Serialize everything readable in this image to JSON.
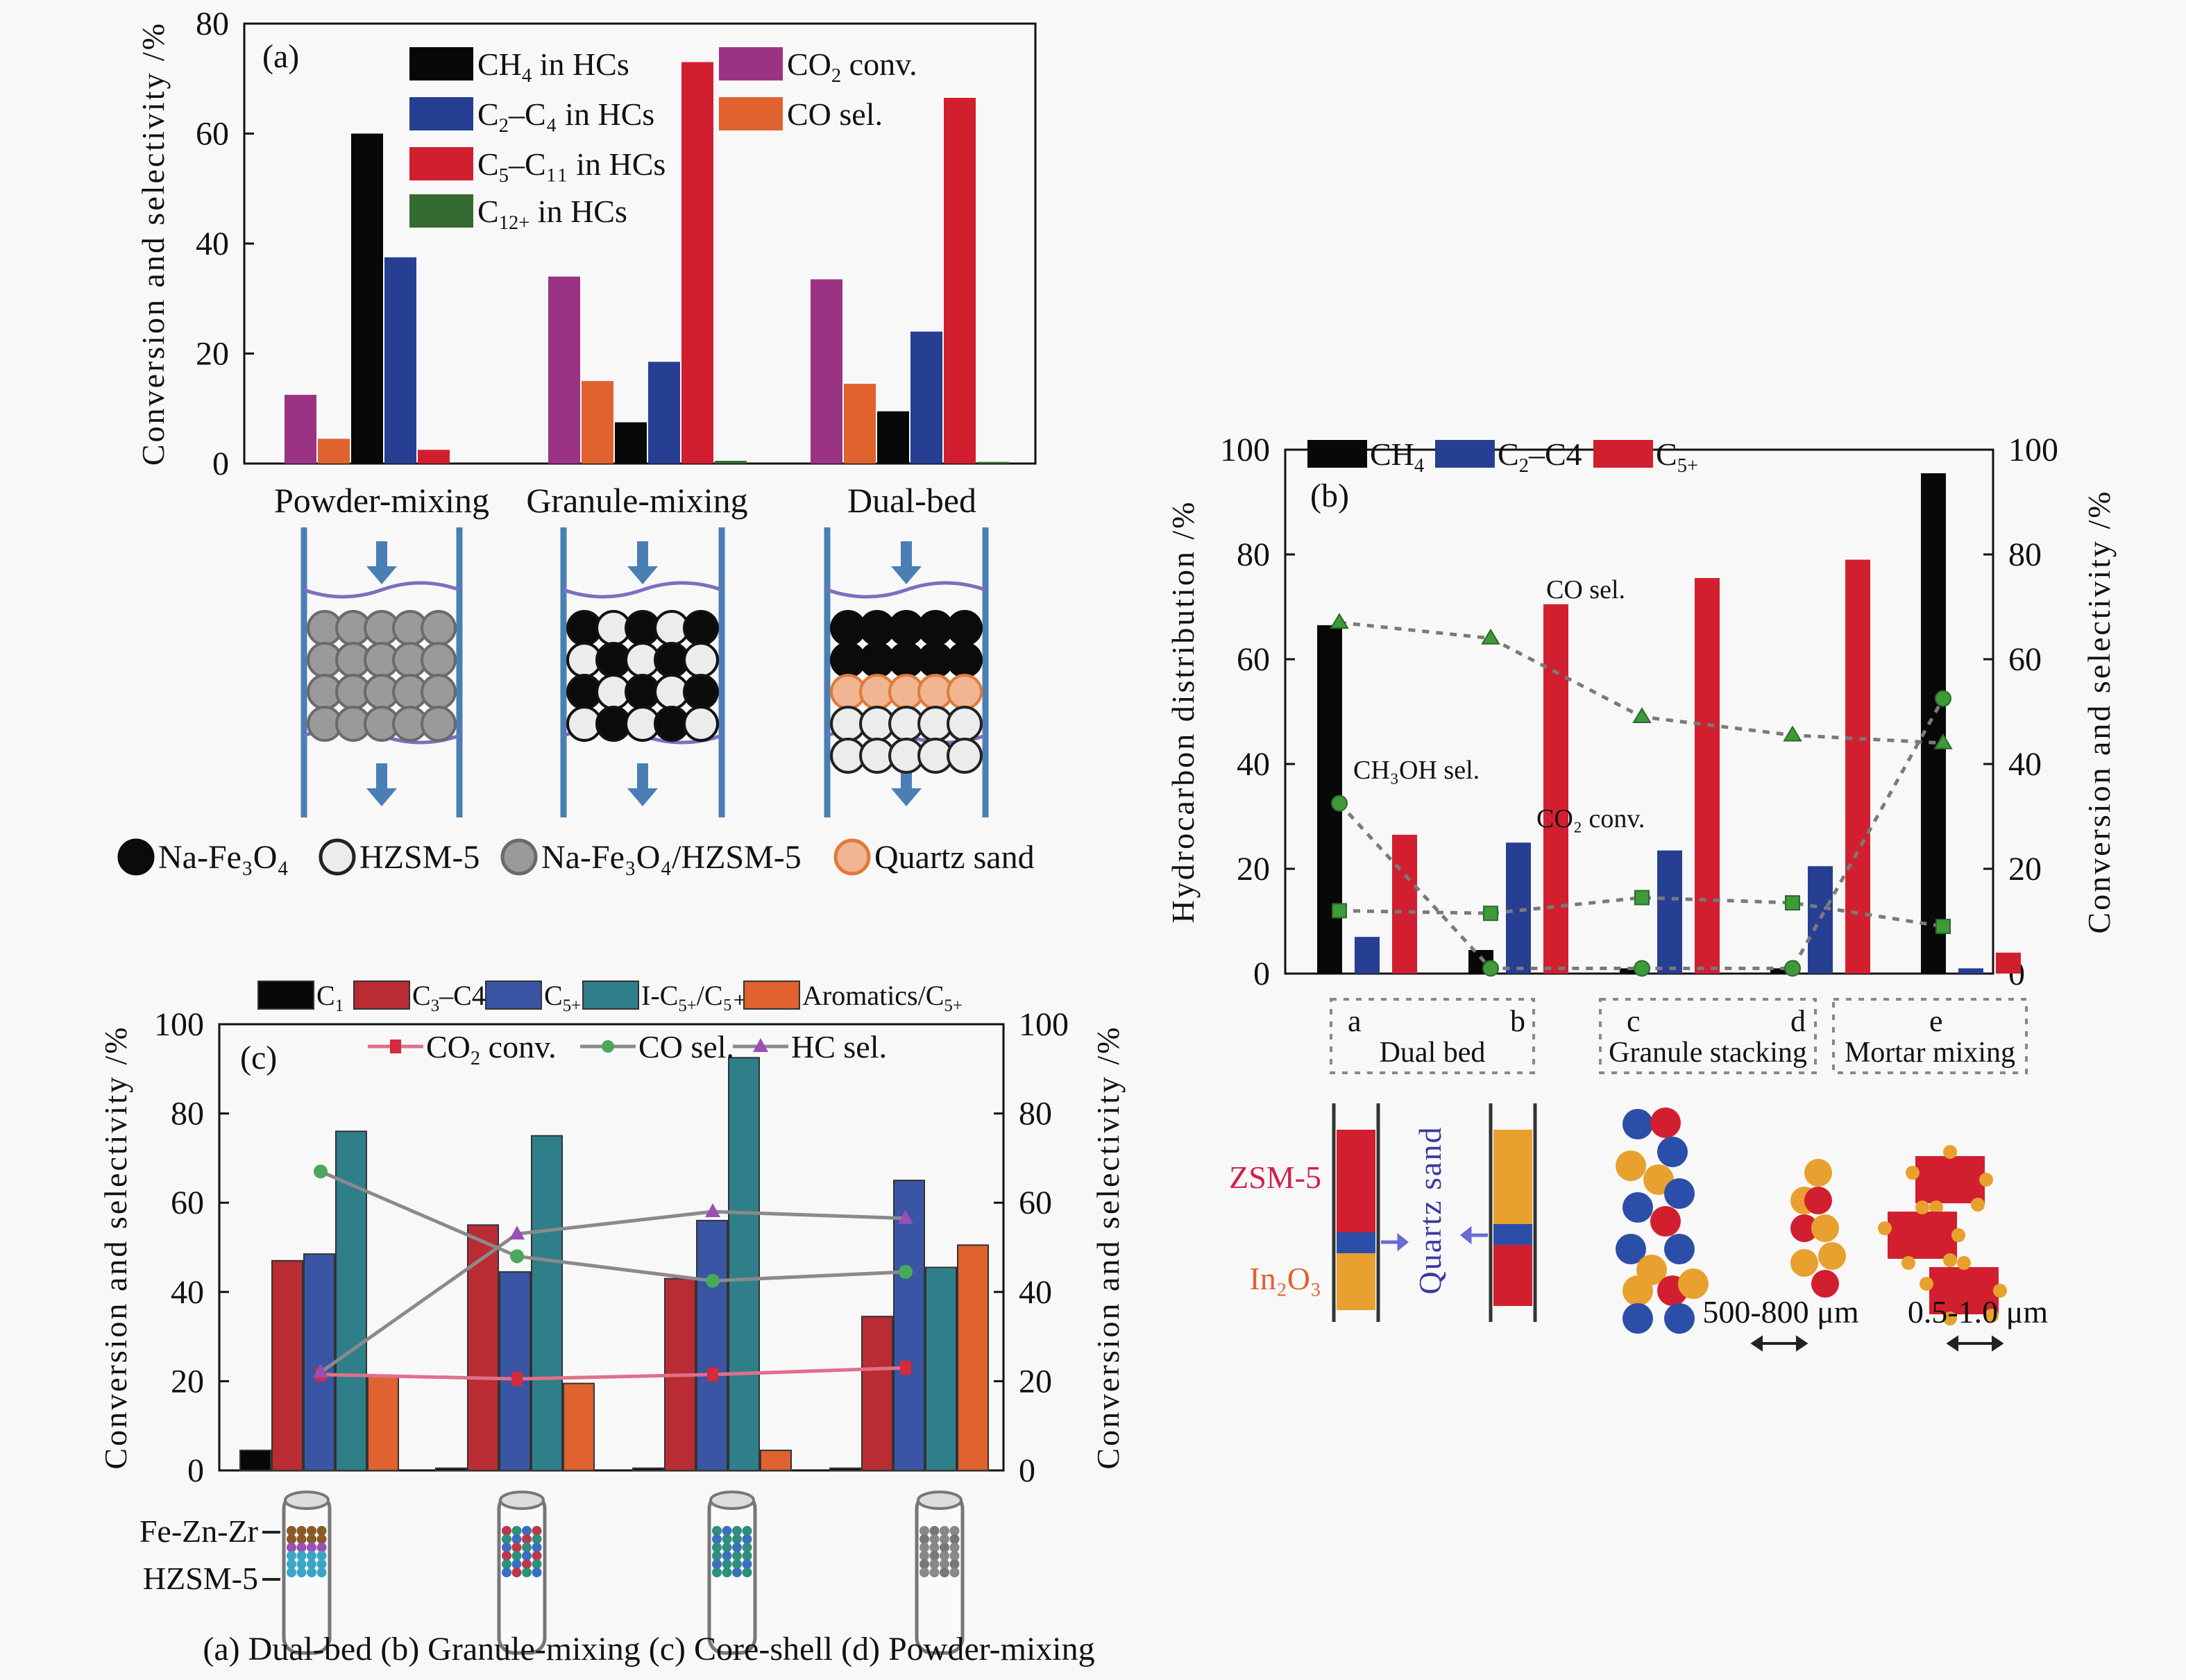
{
  "chart_data": [
    {
      "id": "a",
      "type": "bar",
      "panel_label": "(a)",
      "ylabel": "Conversion and selectivity /%",
      "ylim": [
        0,
        80
      ],
      "yticks": [
        "0",
        "20",
        "40",
        "60",
        "80"
      ],
      "categories": [
        "Powder-mixing",
        "Granule-mixing",
        "Dual-bed"
      ],
      "legend_position": "top-center",
      "series": [
        {
          "name": "CO2 conv.",
          "label_main": "CO",
          "label_sub": "2",
          "label_tail": " conv.",
          "color": "#9b3384",
          "values": [
            12.5,
            34,
            33.5
          ]
        },
        {
          "name": "CO sel.",
          "label_main": "CO sel.",
          "label_sub": "",
          "label_tail": "",
          "color": "#e0622e",
          "values": [
            4.5,
            15,
            14.5
          ]
        },
        {
          "name": "CH4 in HCs",
          "label_main": "CH",
          "label_sub": "4",
          "label_tail": " in HCs",
          "color": "#080808",
          "values": [
            60,
            7.5,
            9.5
          ]
        },
        {
          "name": "C2-C4 in HCs",
          "label_main": "C",
          "label_sub": "2",
          "label_tail": "–C₄ in HCs",
          "color": "#263f93",
          "values": [
            37.5,
            18.5,
            24
          ]
        },
        {
          "name": "C5-C11 in HCs",
          "label_main": "C",
          "label_sub": "5",
          "label_tail": "–C₁₁ in HCs",
          "color": "#d21f2f",
          "values": [
            2.5,
            73,
            66.5
          ]
        },
        {
          "name": "C12+ in HCs",
          "label_main": "C",
          "label_sub": "12+",
          "label_tail": " in HCs",
          "color": "#356b33",
          "values": [
            0,
            0.5,
            0.3
          ]
        }
      ],
      "legend_order": [
        2,
        0,
        3,
        1,
        4,
        5
      ]
    },
    {
      "id": "b",
      "type": "bar",
      "panel_label": "(b)",
      "ylabel": "Hydrocarbon distribution /%",
      "y2label": "Conversion and selectivity /%",
      "ylim": [
        0,
        100
      ],
      "y2lim": [
        0,
        100
      ],
      "yticks": [
        "0",
        "20",
        "40",
        "60",
        "80",
        "100"
      ],
      "categories": [
        "a",
        "b",
        "c",
        "d",
        "e"
      ],
      "legend_position": "top-left",
      "series": [
        {
          "name": "CH4",
          "label_main": "CH",
          "label_sub": "4",
          "color": "#080808",
          "values": [
            66.5,
            4.5,
            1,
            1,
            95.5
          ]
        },
        {
          "name": "C2-C4",
          "label_main": "C",
          "label_sub": "2",
          "label_tail": "–C4",
          "color": "#263f93",
          "values": [
            7,
            25,
            23.5,
            20.5,
            1
          ]
        },
        {
          "name": "C5+",
          "label_main": "C",
          "label_sub": "5+",
          "color": "#d21f2f",
          "values": [
            26.5,
            70.5,
            75.5,
            79,
            4
          ]
        }
      ],
      "lines": [
        {
          "name": "CO sel.",
          "marker": "triangle",
          "values": [
            67,
            64,
            49,
            45.5,
            44
          ]
        },
        {
          "name": "CH3OH sel.",
          "marker": "circle",
          "values": [
            32.5,
            1,
            1,
            1,
            52.5
          ]
        },
        {
          "name": "CO2 conv.",
          "marker": "square",
          "values": [
            12,
            11.5,
            14.5,
            13.5,
            9
          ]
        }
      ],
      "line_color": "#7a7a7a",
      "marker_color": "#3f9a3a",
      "annotations": {
        "co_sel": "CO sel.",
        "ch3oh_sel": "CH₃OH sel.",
        "co2_conv": "CO₂ conv."
      },
      "groups": [
        {
          "letters": [
            "a",
            "b"
          ],
          "name": "Dual bed"
        },
        {
          "letters": [
            "c",
            "d"
          ],
          "name": "Granule stacking"
        },
        {
          "letters": [
            "e"
          ],
          "name": "Mortar mixing"
        }
      ]
    },
    {
      "id": "c",
      "type": "bar",
      "panel_label": "(c)",
      "ylabel": "Conversion and selectivity /%",
      "y2label": "Conversion and selectivity /%",
      "ylim": [
        0,
        100
      ],
      "y2lim": [
        0,
        100
      ],
      "yticks": [
        "0",
        "20",
        "40",
        "60",
        "80",
        "100"
      ],
      "categories": [
        "Dual-bed",
        "Granule-mixing",
        "Core-shell",
        "Powder-mixing"
      ],
      "legend_position": "top",
      "series": [
        {
          "name": "C1",
          "label_main": "C",
          "label_sub": "1",
          "color": "#080808",
          "values": [
            4.5,
            0.5,
            0.5,
            0.5
          ]
        },
        {
          "name": "C3-C4",
          "label_main": "C",
          "label_sub": "3",
          "label_tail": "–C4",
          "color": "#b92c33",
          "values": [
            47,
            55,
            43,
            34.5
          ]
        },
        {
          "name": "C5+",
          "label_main": "C",
          "label_sub": "5+",
          "color": "#3a55a3",
          "values": [
            48.5,
            44.5,
            56,
            65
          ]
        },
        {
          "name": "I-C5+/C5+",
          "label_main": "I-C",
          "label_sub": "5+",
          "label_tail": "/C₅₊",
          "color": "#2e7f89",
          "values": [
            76,
            75,
            92.5,
            45.5
          ]
        },
        {
          "name": "Aromatics/C5+",
          "label_main": "Aromatics/C",
          "label_sub": "5+",
          "color": "#e0622e",
          "values": [
            21,
            19.5,
            4.5,
            50.5
          ]
        }
      ],
      "lines": [
        {
          "name": "CO2 conv.",
          "label_main": "CO",
          "label_sub": "2",
          "label_tail": " conv.",
          "color": "#e0708a",
          "marker_color": "#d42a3a",
          "marker": "square",
          "values": [
            21.5,
            20.5,
            21.5,
            23
          ]
        },
        {
          "name": "CO sel.",
          "label_main": "CO sel.",
          "color": "#8a8a8a",
          "marker_color": "#4aa85a",
          "marker": "circle",
          "values": [
            67,
            48,
            42.5,
            44.5
          ]
        },
        {
          "name": "HC sel.",
          "label_main": "HC sel.",
          "color": "#8a8a8a",
          "marker_color": "#9a4fb5",
          "marker": "triangle",
          "values": [
            22,
            53,
            58,
            56.5
          ]
        }
      ]
    }
  ],
  "panel_a_diagram": {
    "reactor_labels": [
      "Powder-mixing",
      "Granule-mixing",
      "Dual-bed"
    ],
    "legend": [
      {
        "name": "Na-Fe3O4",
        "text": "Na-Fe₃O₄"
      },
      {
        "name": "HZSM-5",
        "text": "HZSM-5"
      },
      {
        "name": "Na-Fe3O4/HZSM-5",
        "text": "Na-Fe₃O₄/HZSM-5"
      },
      {
        "name": "Quartz sand",
        "text": "Quartz sand"
      }
    ]
  },
  "panel_b_diagram": {
    "zsm5_label": "ZSM-5",
    "in2o3_label": "In₂O₃",
    "quartz_label": "Quartz sand",
    "scale_c": "500-800 μm",
    "scale_e": "0.5-1.0 μm"
  },
  "panel_c_diagram": {
    "labels": {
      "fezn": "Fe-Zn-Zr",
      "hzsm": "HZSM-5"
    },
    "caption": "(a) Dual-bed (b) Granule-mixing (c) Core-shell (d) Powder-mixing"
  },
  "colors": {
    "ch4": "#080808",
    "c2c4": "#263f93",
    "c5": "#d21f2f",
    "co2": "#9b3384",
    "co": "#e0622e",
    "c12": "#356b33",
    "teal": "#2e7f89",
    "tube": "#4a7fb5",
    "quartz": "#f0b592",
    "in2o3": "#e8a12e"
  }
}
